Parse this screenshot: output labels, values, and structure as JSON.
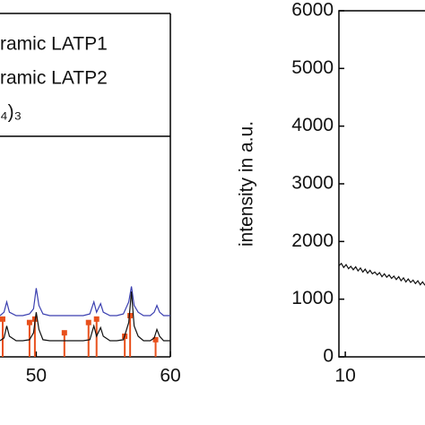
{
  "chart_data": [
    {
      "type": "line",
      "legend": [
        "ramic LATP1",
        "ramic LATP2",
        "₄)₃"
      ],
      "xlim": [
        47.3,
        60
      ],
      "xticks": [
        50,
        60
      ],
      "ylim": [
        0,
        100
      ],
      "x": [
        47.3,
        47.6,
        47.8,
        48.0,
        48.5,
        49.0,
        49.5,
        49.8,
        50.0,
        50.2,
        50.5,
        51,
        51.5,
        52,
        52.5,
        53,
        53.5,
        54,
        54.3,
        54.5,
        54.8,
        55,
        55.5,
        56,
        56.5,
        56.9,
        57.1,
        57.3,
        57.6,
        58,
        58.5,
        58.8,
        59,
        59.2,
        59.5,
        60
      ],
      "series": [
        {
          "color": "#3a3fb0",
          "values": [
            12,
            13,
            16,
            13,
            12,
            12,
            12.5,
            14,
            20,
            15,
            12.5,
            12,
            12,
            12,
            12,
            12,
            12,
            12.5,
            16,
            13,
            15.5,
            13,
            12,
            12,
            12.5,
            16,
            20.5,
            15,
            13,
            12,
            12,
            13,
            15,
            13,
            12,
            12
          ]
        },
        {
          "color": "#111111",
          "values": [
            4.7,
            5.5,
            9,
            6,
            4.7,
            4.7,
            5,
            7,
            13,
            8,
            5,
            4.7,
            4.7,
            4.7,
            4.7,
            4.7,
            4.7,
            5,
            9,
            6,
            8.5,
            6,
            4.7,
            4.7,
            5,
            10,
            19,
            9,
            6,
            4.7,
            4.7,
            5.5,
            8,
            6,
            4.7,
            4.7
          ]
        }
      ],
      "reference": {
        "color": "#e8501c",
        "x": [
          47.5,
          49.5,
          49.9,
          52.1,
          53.9,
          54.5,
          56.6,
          57,
          58.9
        ],
        "values": [
          11,
          10,
          11,
          7,
          10,
          11,
          6,
          12,
          5
        ]
      }
    },
    {
      "type": "line",
      "ylabel": "intensity in a.u.",
      "xlim": [
        9.8,
        12.5
      ],
      "xticks": [
        10
      ],
      "ylim": [
        0,
        6000
      ],
      "yticks": [
        0,
        1000,
        2000,
        3000,
        4000,
        5000,
        6000
      ],
      "x": [
        9.8,
        9.875,
        9.95,
        10.025,
        10.1,
        10.175,
        10.25,
        10.325,
        10.4,
        10.475,
        10.55,
        10.625,
        10.7,
        10.775,
        10.85,
        10.925,
        11,
        11.075,
        11.15,
        11.225,
        11.3,
        11.375,
        11.45,
        11.525,
        11.6,
        11.675,
        11.75,
        11.825,
        11.9,
        11.975,
        12.05,
        12.125,
        12.2,
        12.275,
        12.35,
        12.425,
        12.5
      ],
      "series": [
        {
          "color": "#111111",
          "values": [
            1580,
            1620,
            1550,
            1600,
            1530,
            1570,
            1510,
            1560,
            1490,
            1540,
            1470,
            1520,
            1450,
            1500,
            1440,
            1470,
            1420,
            1460,
            1390,
            1440,
            1380,
            1420,
            1360,
            1400,
            1340,
            1390,
            1320,
            1370,
            1300,
            1350,
            1290,
            1330,
            1270,
            1320,
            1250,
            1300,
            1240
          ]
        }
      ]
    }
  ]
}
